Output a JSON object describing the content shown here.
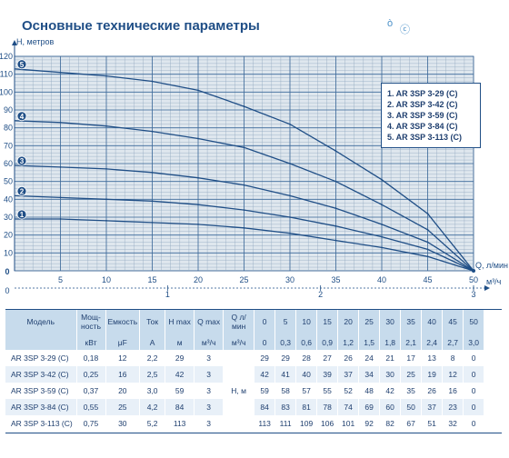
{
  "page": {
    "title": "Основные технические параметры",
    "deco_glyphs": [
      "ò",
      "ⓒ"
    ]
  },
  "chart_data": {
    "type": "line",
    "ylabel": "H, метров",
    "xlabel": "Q, л/мин",
    "x2label": "м³/ч",
    "xlim": [
      0,
      50
    ],
    "ylim": [
      0,
      120
    ],
    "grid": true,
    "legend_position": "top-right",
    "x_ticks": [
      "5",
      "10",
      "15",
      "20",
      "25",
      "30",
      "35",
      "40",
      "45",
      "50"
    ],
    "y_ticks": [
      "10",
      "20",
      "30",
      "40",
      "50",
      "60",
      "70",
      "80",
      "90",
      "100",
      "110",
      "120"
    ],
    "x2_ticks": [
      "1",
      "2",
      "3"
    ],
    "zero_labels": [
      "0",
      "0"
    ],
    "series": [
      {
        "name": "AR 3SP 3-29 (C)",
        "marker": "1",
        "color": "#1f4e86",
        "x": [
          0,
          5,
          10,
          15,
          20,
          25,
          30,
          35,
          40,
          45,
          50
        ],
        "y": [
          29,
          29,
          28,
          27,
          26,
          24,
          21,
          17,
          13,
          8,
          0
        ]
      },
      {
        "name": "AR 3SP 3-42 (C)",
        "marker": "2",
        "color": "#1f4e86",
        "x": [
          0,
          5,
          10,
          15,
          20,
          25,
          30,
          35,
          40,
          45,
          50
        ],
        "y": [
          42,
          41,
          40,
          39,
          37,
          34,
          30,
          25,
          19,
          12,
          0
        ]
      },
      {
        "name": "AR 3SP 3-59 (C)",
        "marker": "3",
        "color": "#1f4e86",
        "x": [
          0,
          5,
          10,
          15,
          20,
          25,
          30,
          35,
          40,
          45,
          50
        ],
        "y": [
          59,
          58,
          57,
          55,
          52,
          48,
          42,
          35,
          26,
          16,
          0
        ]
      },
      {
        "name": "AR 3SP 3-84 (C)",
        "marker": "4",
        "color": "#1f4e86",
        "x": [
          0,
          5,
          10,
          15,
          20,
          25,
          30,
          35,
          40,
          45,
          50
        ],
        "y": [
          84,
          83,
          81,
          78,
          74,
          69,
          60,
          50,
          37,
          23,
          0
        ]
      },
      {
        "name": "AR 3SP 3-113 (C)",
        "marker": "5",
        "color": "#1f4e86",
        "x": [
          0,
          5,
          10,
          15,
          20,
          25,
          30,
          35,
          40,
          45,
          50
        ],
        "y": [
          113,
          111,
          109,
          106,
          101,
          92,
          82,
          67,
          51,
          32,
          0
        ]
      }
    ]
  },
  "legend": {
    "items": [
      "1.  AR 3SP 3-29 (C)",
      "2.  AR 3SP 3-42 (C)",
      "3.  AR 3SP 3-59 (C)",
      "4.  AR 3SP 3-84 (C)",
      "5.  AR 3SP 3-113 (C)"
    ]
  },
  "table": {
    "headers": {
      "model": "Модель",
      "power": "Мощ-ность",
      "capacity": "Емкость",
      "current": "Ток",
      "hmax": "H max",
      "qmax": "Q max",
      "q": "Q л/мин",
      "flow": [
        "0",
        "5",
        "10",
        "15",
        "20",
        "25",
        "30",
        "35",
        "40",
        "45",
        "50"
      ]
    },
    "units": {
      "power": "кВт",
      "capacity": "μF",
      "current": "A",
      "hmax": "м",
      "qmax": "м³/ч",
      "q": "м³/ч",
      "flow": [
        "0",
        "0,3",
        "0,6",
        "0,9",
        "1,2",
        "1,5",
        "1,8",
        "2,1",
        "2,4",
        "2,7",
        "3,0"
      ]
    },
    "h_label": "H, м",
    "rows": [
      {
        "model": "AR 3SP 3-29 (C)",
        "power": "0,18",
        "capacity": "12",
        "current": "2,2",
        "hmax": "29",
        "qmax": "3",
        "h": [
          "29",
          "29",
          "28",
          "27",
          "26",
          "24",
          "21",
          "17",
          "13",
          "8",
          "0"
        ]
      },
      {
        "model": "AR 3SP 3-42 (C)",
        "power": "0,25",
        "capacity": "16",
        "current": "2,5",
        "hmax": "42",
        "qmax": "3",
        "h": [
          "42",
          "41",
          "40",
          "39",
          "37",
          "34",
          "30",
          "25",
          "19",
          "12",
          "0"
        ]
      },
      {
        "model": "AR 3SP 3-59 (C)",
        "power": "0,37",
        "capacity": "20",
        "current": "3,0",
        "hmax": "59",
        "qmax": "3",
        "h": [
          "59",
          "58",
          "57",
          "55",
          "52",
          "48",
          "42",
          "35",
          "26",
          "16",
          "0"
        ]
      },
      {
        "model": "AR 3SP 3-84 (C)",
        "power": "0,55",
        "capacity": "25",
        "current": "4,2",
        "hmax": "84",
        "qmax": "3",
        "h": [
          "84",
          "83",
          "81",
          "78",
          "74",
          "69",
          "60",
          "50",
          "37",
          "23",
          "0"
        ]
      },
      {
        "model": "AR 3SP 3-113 (C)",
        "power": "0,75",
        "capacity": "30",
        "current": "5,2",
        "hmax": "113",
        "qmax": "3",
        "h": [
          "113",
          "111",
          "109",
          "106",
          "101",
          "92",
          "82",
          "67",
          "51",
          "32",
          "0"
        ]
      }
    ]
  }
}
